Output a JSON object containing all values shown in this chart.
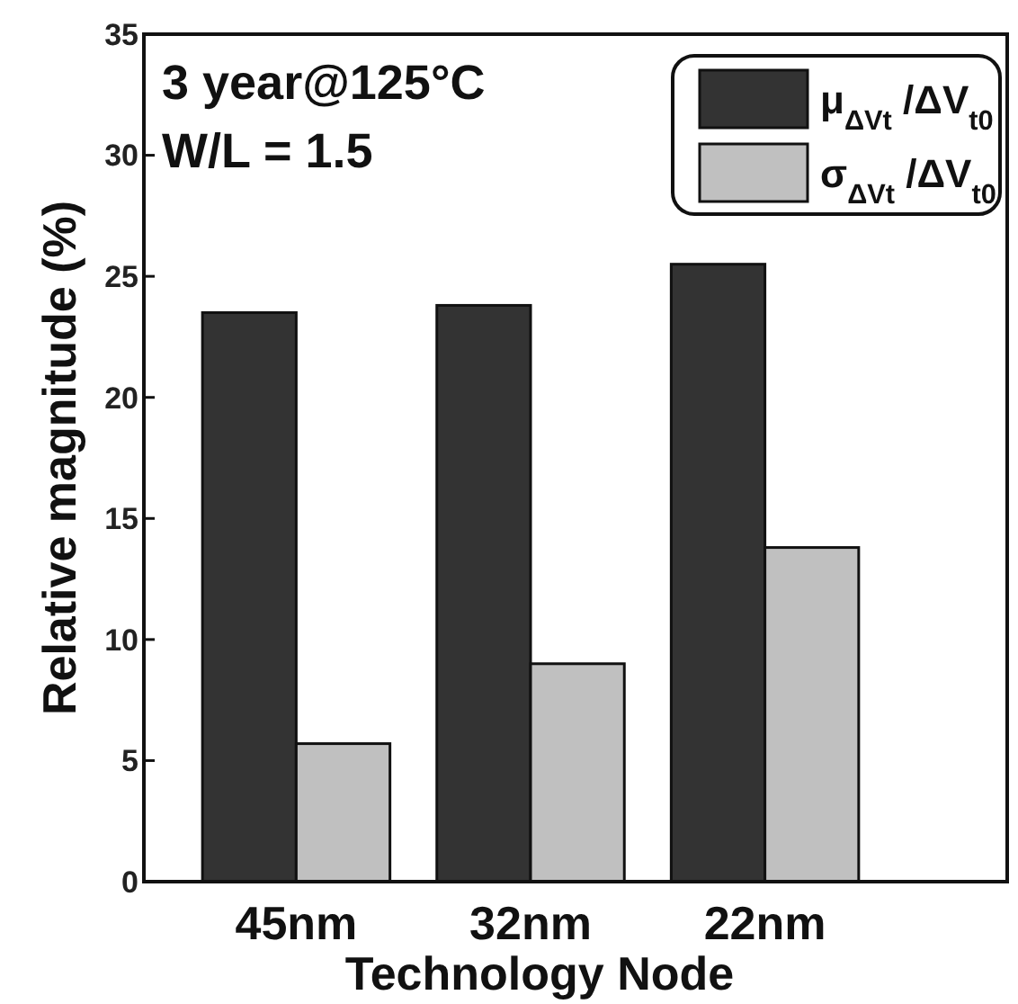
{
  "chart_data": {
    "type": "bar",
    "xlabel": "Technology Node",
    "ylabel": "Relative magnitude (%)",
    "categories": [
      "45nm",
      "32nm",
      "22nm"
    ],
    "series": [
      {
        "name": "μ$_{ΔVt}$ /ΔV$_{t0}$",
        "color": "#333333",
        "values": [
          23.5,
          23.8,
          25.5
        ]
      },
      {
        "name": "σ$_{ΔVt}$ /ΔV$_{t0}$",
        "color": "#c0c0c0",
        "values": [
          5.7,
          9.0,
          13.8
        ]
      }
    ],
    "ylim": [
      0,
      35
    ],
    "yticks": [
      0,
      5,
      10,
      15,
      20,
      25,
      30,
      35
    ],
    "grid": false,
    "legend": "top right",
    "annotations": [
      "3 year@125°C",
      "W/L = 1.5"
    ]
  }
}
